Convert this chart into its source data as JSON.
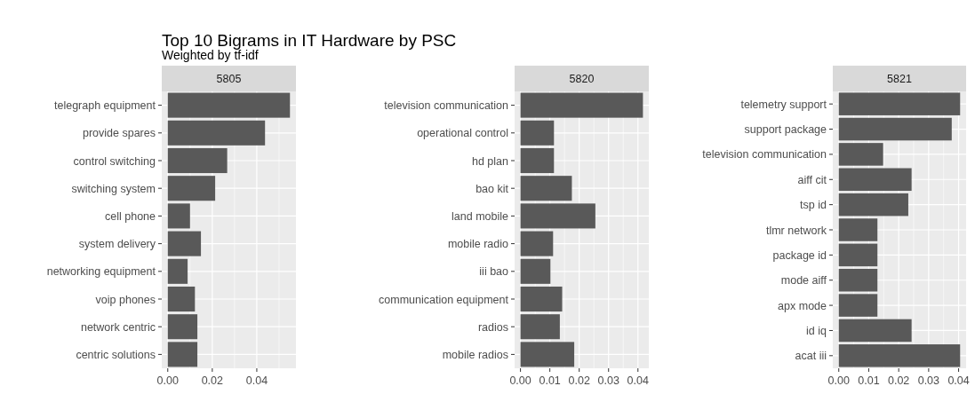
{
  "chart_data": [
    {
      "type": "other",
      "title": "Top 10 Bigrams in IT Hardware by PSC",
      "subtitle": "Weighted by tf-idf"
    },
    {
      "type": "bar",
      "orientation": "horizontal",
      "title": "5805",
      "categories": [
        "telegraph equipment",
        "provide spares",
        "control switching",
        "switching system",
        "cell phone",
        "system delivery",
        "networking equipment",
        "voip phones",
        "network centric",
        "centric solutions"
      ],
      "values": [
        0.0549,
        0.0437,
        0.0267,
        0.0213,
        0.01,
        0.0149,
        0.0089,
        0.0122,
        0.0133,
        0.0133
      ],
      "color": "#595959",
      "xlim": [
        -0.0027,
        0.0576
      ],
      "xticks": [
        {
          "value": 0,
          "label": "0.00"
        },
        {
          "value": 0.02,
          "label": "0.02"
        },
        {
          "value": 0.04,
          "label": "0.04"
        }
      ],
      "grid": true
    },
    {
      "type": "bar",
      "orientation": "horizontal",
      "title": "5820",
      "categories": [
        "television communication",
        "operational control",
        "hd plan",
        "bao kit",
        "land mobile",
        "mobile radio",
        "iii bao",
        "communication equipment",
        "radios",
        "mobile radios"
      ],
      "values": [
        0.0417,
        0.0114,
        0.0114,
        0.0175,
        0.0255,
        0.0111,
        0.0102,
        0.0142,
        0.0134,
        0.0183
      ],
      "color": "#595959",
      "xlim": [
        -0.002,
        0.0437
      ],
      "xticks": [
        {
          "value": 0,
          "label": "0.00"
        },
        {
          "value": 0.01,
          "label": "0.01"
        },
        {
          "value": 0.02,
          "label": "0.02"
        },
        {
          "value": 0.03,
          "label": "0.03"
        },
        {
          "value": 0.04,
          "label": "0.04"
        }
      ],
      "grid": true
    },
    {
      "type": "bar",
      "orientation": "horizontal",
      "title": "5821",
      "categories": [
        "telemetry support",
        "support package",
        "television communication",
        "aiff cit",
        "tsp id",
        "tlmr network",
        "package id",
        "mode aiff",
        "apx mode",
        "id iq",
        "acat iii"
      ],
      "values": [
        0.0405,
        0.0377,
        0.0148,
        0.0243,
        0.0232,
        0.0129,
        0.0129,
        0.0129,
        0.0129,
        0.0243,
        0.0405
      ],
      "color": "#595959",
      "xlim": [
        -0.002,
        0.0425
      ],
      "xticks": [
        {
          "value": 0,
          "label": "0.00"
        },
        {
          "value": 0.01,
          "label": "0.01"
        },
        {
          "value": 0.02,
          "label": "0.02"
        },
        {
          "value": 0.03,
          "label": "0.03"
        },
        {
          "value": 0.04,
          "label": "0.04"
        }
      ],
      "grid": true
    }
  ]
}
